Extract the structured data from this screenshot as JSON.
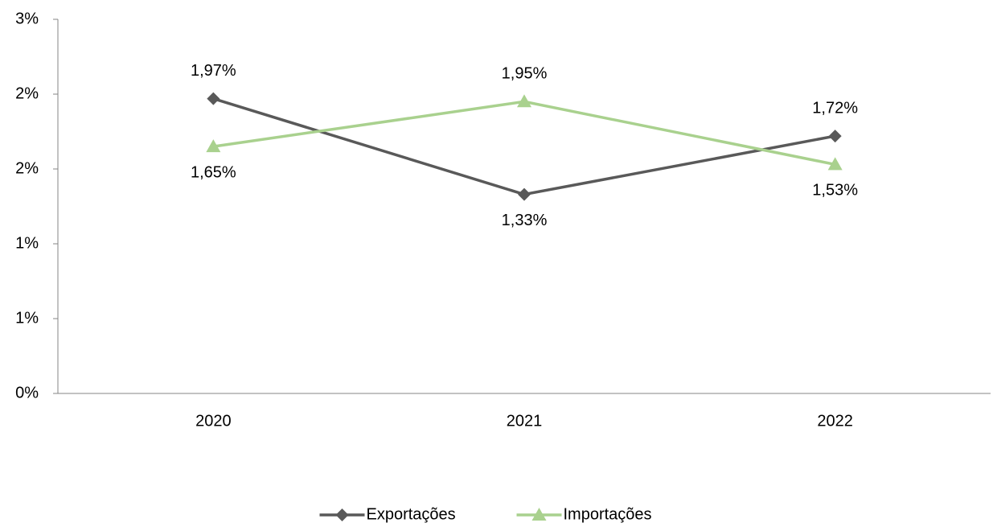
{
  "chart_data": {
    "type": "line",
    "categories": [
      "2020",
      "2021",
      "2022"
    ],
    "series": [
      {
        "name": "Exportações",
        "color": "#595959",
        "marker": "diamond",
        "values": [
          1.97,
          1.33,
          1.72
        ],
        "value_labels": [
          "1,97%",
          "1,33%",
          "1,72%"
        ]
      },
      {
        "name": "Importações",
        "color": "#a9d18e",
        "marker": "triangle",
        "values": [
          1.65,
          1.95,
          1.53
        ],
        "value_labels": [
          "1,65%",
          "1,95%",
          "1,53%"
        ]
      }
    ],
    "ylim": [
      0,
      2.5
    ],
    "yticks": [
      {
        "value": 0,
        "label": "0%"
      },
      {
        "value": 0.5,
        "label": "1%"
      },
      {
        "value": 1,
        "label": "1%"
      },
      {
        "value": 1.5,
        "label": "2%"
      },
      {
        "value": 2,
        "label": "2%"
      },
      {
        "value": 2.5,
        "label": "3%"
      }
    ],
    "legend": "bottom"
  }
}
